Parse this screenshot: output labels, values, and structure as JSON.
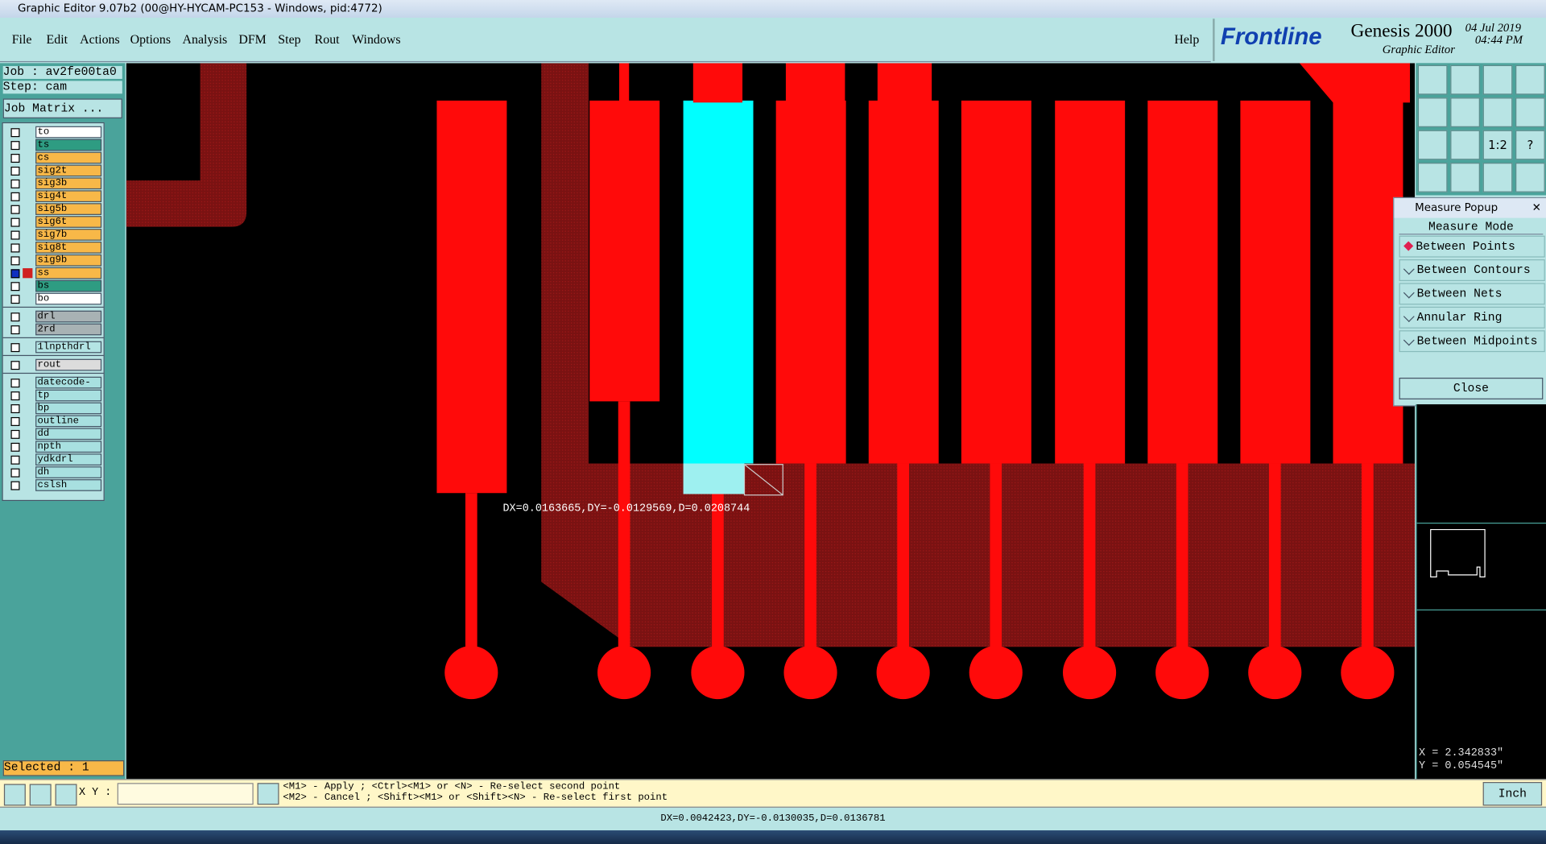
{
  "title_bar": "Graphic Editor 9.07b2 (00@HY-HYCAM-PC153 - Windows, pid:4772)",
  "menu": [
    "File",
    "Edit",
    "Actions",
    "Options",
    "Analysis",
    "DFM",
    "Step",
    "Rout",
    "Windows"
  ],
  "help": "Help",
  "brand": {
    "logo": "Frontline",
    "product": "Genesis 2000",
    "subtitle": "Graphic Editor",
    "date": "04 Jul 2019",
    "time": "04:44 PM"
  },
  "job": {
    "job": "Job : av2fe00ta0",
    "step": "Step: cam",
    "matrix_button": "Job Matrix ..."
  },
  "layer_groups": [
    [
      {
        "name": "to",
        "color": "#ffffff"
      },
      {
        "name": "ts",
        "color": "#2e9c82"
      },
      {
        "name": "cs",
        "color": "#f8b848"
      },
      {
        "name": "sig2t",
        "color": "#f8b848"
      },
      {
        "name": "sig3b",
        "color": "#f8b848"
      },
      {
        "name": "sig4t",
        "color": "#f8b848"
      },
      {
        "name": "sig5b",
        "color": "#f8b848"
      },
      {
        "name": "sig6t",
        "color": "#f8b848"
      },
      {
        "name": "sig7b",
        "color": "#f8b848"
      },
      {
        "name": "sig8t",
        "color": "#f8b848"
      },
      {
        "name": "sig9b",
        "color": "#f8b848"
      },
      {
        "name": "ss",
        "color": "#f8b848"
      },
      {
        "name": "bs",
        "color": "#2e9c82"
      },
      {
        "name": "bo",
        "color": "#ffffff"
      }
    ],
    [
      {
        "name": "drl",
        "color": "#a8b2b4"
      },
      {
        "name": "2rd",
        "color": "#a8b2b4"
      }
    ],
    [
      {
        "name": "1lnpthdrl",
        "color": "#b4e4e4"
      }
    ],
    [
      {
        "name": "rout",
        "color": "#dcdcdc"
      }
    ],
    [
      {
        "name": "datecode-to",
        "color": "#a8e0e0"
      },
      {
        "name": "tp",
        "color": "#a8e0e0"
      },
      {
        "name": "bp",
        "color": "#a8e0e0"
      },
      {
        "name": "outline",
        "color": "#a8e0e0"
      },
      {
        "name": "dd",
        "color": "#a8e0e0"
      },
      {
        "name": "npth",
        "color": "#a8e0e0"
      },
      {
        "name": "ydkdrl",
        "color": "#a8e0e0"
      },
      {
        "name": "dh",
        "color": "#a8e0e0"
      },
      {
        "name": "cslsh",
        "color": "#a8e0e0"
      }
    ]
  ],
  "selected": "Selected : 1",
  "canvas": {
    "measurement": "DX=0.0163665,DY=-0.0129569,D=0.0208744"
  },
  "measure_popup": {
    "title": "Measure Popup",
    "mode_header": "Measure Mode",
    "modes": [
      "Between Points",
      "Between Contours",
      "Between Nets",
      "Annular Ring",
      "Between Midpoints"
    ],
    "close": "Close"
  },
  "toolbar": {
    "scale_button": "1:2",
    "help_button": "?"
  },
  "coordinates": {
    "x": "X = 2.342833\"",
    "y": "Y = 0.054545\""
  },
  "command_bar": {
    "xy_label": "X Y :",
    "hints": [
      "<M1> - Apply  ; <Ctrl><M1> or <N> - Re-select second point",
      "<M2> - Cancel ; <Shift><M1> or <Shift><N> - Re-select first point"
    ],
    "units": "Inch"
  },
  "status": "DX=0.0042423,DY=-0.0130035,D=0.0136781"
}
